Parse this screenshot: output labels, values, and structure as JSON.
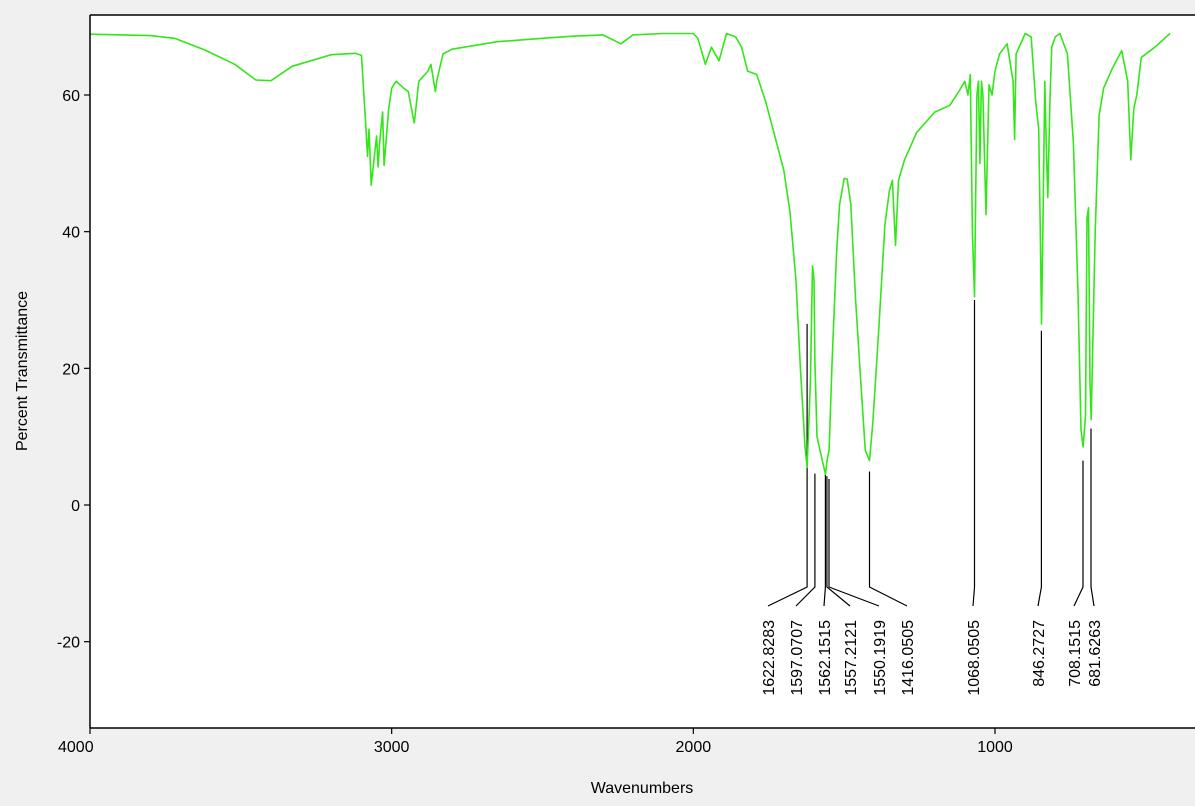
{
  "chart_data": {
    "type": "line",
    "title": "",
    "xlabel": "Wavenumbers",
    "ylabel": "Percent Transmittance",
    "xlim": [
      4000,
      400
    ],
    "ylim": [
      -33,
      70
    ],
    "x_reversed": true,
    "grid": false,
    "legend": "none",
    "line_color": "#33e619",
    "background_color": "#ffffff",
    "x_ticks": [
      {
        "value": 4000,
        "label": "4000"
      },
      {
        "value": 3000,
        "label": "3000"
      },
      {
        "value": 2000,
        "label": "2000"
      },
      {
        "value": 1000,
        "label": "1000"
      }
    ],
    "y_ticks": [
      {
        "value": 60,
        "label": "60"
      },
      {
        "value": 40,
        "label": "40"
      },
      {
        "value": 20,
        "label": "20"
      },
      {
        "value": 0,
        "label": "0"
      },
      {
        "value": -20,
        "label": "-20"
      }
    ],
    "series": [
      {
        "points": [
          [
            4000,
            68.9
          ],
          [
            3800,
            68.7
          ],
          [
            3720,
            68.3
          ],
          [
            3620,
            66.6
          ],
          [
            3520,
            64.5
          ],
          [
            3450,
            62.2
          ],
          [
            3400,
            62.1
          ],
          [
            3330,
            64.2
          ],
          [
            3200,
            65.9
          ],
          [
            3120,
            66.1
          ],
          [
            3100,
            65.8
          ],
          [
            3085,
            55
          ],
          [
            3080,
            51
          ],
          [
            3075,
            55
          ],
          [
            3068,
            46.8
          ],
          [
            3060,
            50
          ],
          [
            3050,
            54
          ],
          [
            3045,
            49.5
          ],
          [
            3040,
            53
          ],
          [
            3030,
            57.5
          ],
          [
            3025,
            49.7
          ],
          [
            3010,
            58
          ],
          [
            3000,
            61
          ],
          [
            2985,
            62
          ],
          [
            2960,
            61
          ],
          [
            2945,
            60.5
          ],
          [
            2930,
            57
          ],
          [
            2925,
            55.9
          ],
          [
            2910,
            62
          ],
          [
            2880,
            63.5
          ],
          [
            2870,
            64.5
          ],
          [
            2855,
            60.5
          ],
          [
            2850,
            62.2
          ],
          [
            2830,
            66
          ],
          [
            2800,
            66.7
          ],
          [
            2650,
            67.8
          ],
          [
            2500,
            68.3
          ],
          [
            2400,
            68.6
          ],
          [
            2300,
            68.8
          ],
          [
            2240,
            67.5
          ],
          [
            2200,
            68.8
          ],
          [
            2100,
            69
          ],
          [
            2000,
            69
          ],
          [
            1985,
            68.3
          ],
          [
            1960,
            64.5
          ],
          [
            1940,
            67
          ],
          [
            1915,
            65
          ],
          [
            1890,
            69
          ],
          [
            1860,
            68.5
          ],
          [
            1840,
            67
          ],
          [
            1820,
            63.5
          ],
          [
            1790,
            63
          ],
          [
            1760,
            59
          ],
          [
            1730,
            54
          ],
          [
            1700,
            49
          ],
          [
            1680,
            43
          ],
          [
            1660,
            33
          ],
          [
            1645,
            20
          ],
          [
            1630,
            8.5
          ],
          [
            1623,
            5.5
          ],
          [
            1612,
            18
          ],
          [
            1605,
            35
          ],
          [
            1600,
            33
          ],
          [
            1597,
            21
          ],
          [
            1590,
            10
          ],
          [
            1580,
            8
          ],
          [
            1570,
            6
          ],
          [
            1562,
            4.5
          ],
          [
            1557,
            6.5
          ],
          [
            1550,
            8
          ],
          [
            1540,
            21
          ],
          [
            1525,
            37
          ],
          [
            1515,
            44
          ],
          [
            1500,
            47.8
          ],
          [
            1490,
            47.7
          ],
          [
            1478,
            44
          ],
          [
            1462,
            30
          ],
          [
            1445,
            18
          ],
          [
            1430,
            8
          ],
          [
            1416,
            6.5
          ],
          [
            1405,
            12
          ],
          [
            1385,
            26
          ],
          [
            1365,
            41
          ],
          [
            1350,
            46
          ],
          [
            1340,
            47.5
          ],
          [
            1330,
            38
          ],
          [
            1320,
            47.5
          ],
          [
            1300,
            50.5
          ],
          [
            1260,
            54.5
          ],
          [
            1200,
            57.5
          ],
          [
            1150,
            58.5
          ],
          [
            1120,
            60.5
          ],
          [
            1100,
            62
          ],
          [
            1090,
            60
          ],
          [
            1082,
            63
          ],
          [
            1075,
            40
          ],
          [
            1068,
            30.5
          ],
          [
            1060,
            60
          ],
          [
            1055,
            62
          ],
          [
            1050,
            50
          ],
          [
            1045,
            62
          ],
          [
            1040,
            60
          ],
          [
            1030,
            42.5
          ],
          [
            1020,
            61.5
          ],
          [
            1010,
            60
          ],
          [
            1000,
            63.5
          ],
          [
            985,
            66
          ],
          [
            960,
            67.5
          ],
          [
            940,
            62
          ],
          [
            935,
            53.5
          ],
          [
            930,
            66
          ],
          [
            900,
            69
          ],
          [
            880,
            68.5
          ],
          [
            865,
            59
          ],
          [
            855,
            55
          ],
          [
            850,
            40
          ],
          [
            846,
            26.5
          ],
          [
            840,
            45
          ],
          [
            835,
            62
          ],
          [
            830,
            52.5
          ],
          [
            825,
            45
          ],
          [
            818,
            59
          ],
          [
            812,
            67
          ],
          [
            800,
            68.5
          ],
          [
            785,
            69
          ],
          [
            760,
            66
          ],
          [
            740,
            53
          ],
          [
            725,
            31
          ],
          [
            715,
            11
          ],
          [
            708,
            8.5
          ],
          [
            700,
            13
          ],
          [
            695,
            42
          ],
          [
            690,
            43.5
          ],
          [
            685,
            18
          ],
          [
            681,
            12.5
          ],
          [
            675,
            25
          ],
          [
            668,
            40
          ],
          [
            655,
            57
          ],
          [
            640,
            61
          ],
          [
            610,
            64
          ],
          [
            580,
            66.5
          ],
          [
            560,
            62
          ],
          [
            550,
            50.5
          ],
          [
            540,
            58
          ],
          [
            530,
            60
          ],
          [
            515,
            65.5
          ],
          [
            470,
            67
          ],
          [
            420,
            69
          ]
        ]
      }
    ],
    "peaks": [
      {
        "label": "1622.8283",
        "x": 1622.8283,
        "y_top": 26.5
      },
      {
        "label": "1597.0707",
        "x": 1597.0707,
        "y_top": 4.6
      },
      {
        "label": "1562.1515",
        "x": 1562.1515,
        "y_top": 5.2
      },
      {
        "label": "1557.2121",
        "x": 1557.2121,
        "y_top": 4.2
      },
      {
        "label": "1550.1919",
        "x": 1550.1919,
        "y_top": 3.8
      },
      {
        "label": "1416.0505",
        "x": 1416.0505,
        "y_top": 4.9
      },
      {
        "label": "1068.0505",
        "x": 1068.0505,
        "y_top": 30
      },
      {
        "label": "846.2727",
        "x": 846.2727,
        "y_top": 25.5
      },
      {
        "label": "708.1515",
        "x": 708.1515,
        "y_top": 6.5
      },
      {
        "label": "681.6263",
        "x": 681.6263,
        "y_top": 11.2
      }
    ]
  }
}
